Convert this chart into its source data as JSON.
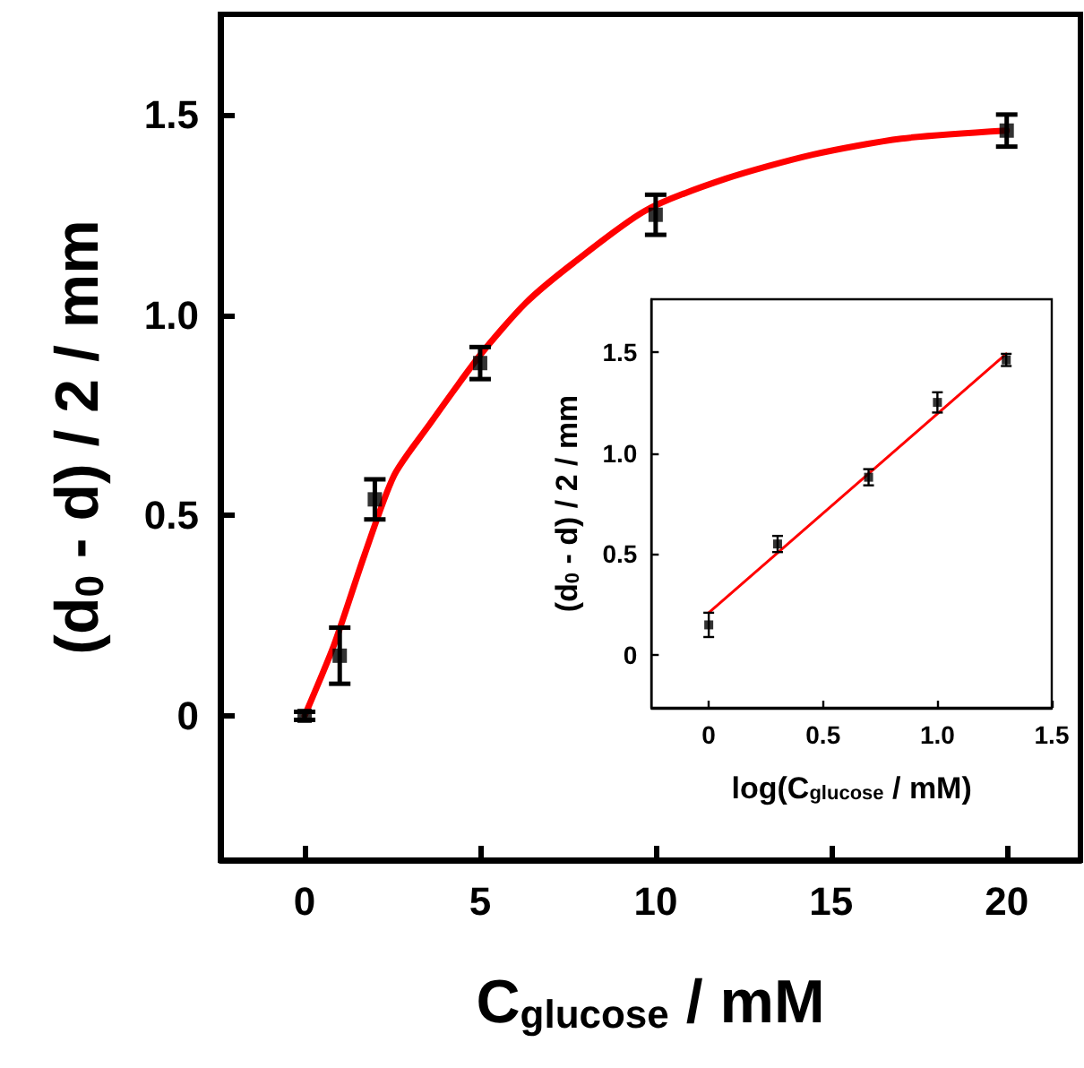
{
  "chart_data": [
    {
      "type": "scatter",
      "xlabel": "C$_{glucose}$ / mM",
      "ylabel": "(d$_{0}$ - d) / 2 / mm",
      "xlim": [
        -2.4,
        22.1
      ],
      "ylim": [
        -0.36,
        1.75
      ],
      "xticks": [
        0,
        5,
        10,
        15,
        20
      ],
      "yticks": [
        0,
        0.5,
        {
          "value": 1,
          "label": "1.0"
        },
        1.5
      ],
      "grid": false,
      "marker": "square",
      "series": [
        {
          "color": "#000000",
          "x": [
            0,
            1,
            2,
            5,
            10,
            20
          ],
          "values": [
            0,
            0.15,
            0.54,
            0.88,
            1.25,
            1.46
          ],
          "errors": [
            0.01,
            0.07,
            0.05,
            0.04,
            0.05,
            0.04
          ]
        },
        {
          "type": "line",
          "color": "#ff0000",
          "marker": "none",
          "x": [
            0,
            0.85,
            1.7,
            2.55,
            3.5,
            5,
            6.3,
            7.66,
            9.7,
            12,
            14.47,
            17,
            20
          ],
          "values": [
            0,
            0.18,
            0.4,
            0.6,
            0.72,
            0.9,
            1.03,
            1.13,
            1.26,
            1.34,
            1.4,
            1.44,
            1.46
          ]
        }
      ]
    },
    {
      "type": "scatter",
      "xlabel": "log(C$_{glucose}$ / mM)",
      "ylabel": "(d$_{0}$ - d) / 2 / mm",
      "xlim": [
        -0.25,
        1.5
      ],
      "ylim": [
        -0.26,
        1.76
      ],
      "xticks": [
        0,
        0.5,
        {
          "value": 1,
          "label": "1.0"
        },
        1.5
      ],
      "yticks": [
        0,
        0.5,
        {
          "value": 1,
          "label": "1.0"
        },
        1.5
      ],
      "grid": false,
      "marker": "square",
      "series": [
        {
          "color": "#000000",
          "x": [
            0,
            0.301,
            0.699,
            1,
            1.301
          ],
          "values": [
            0.15,
            0.55,
            0.88,
            1.25,
            1.46
          ],
          "errors": [
            0.06,
            0.04,
            0.04,
            0.05,
            0.03
          ]
        },
        {
          "type": "line",
          "color": "#ff0000",
          "marker": "none",
          "x": [
            0,
            1.301
          ],
          "values": [
            0.21,
            1.49
          ]
        }
      ]
    }
  ]
}
